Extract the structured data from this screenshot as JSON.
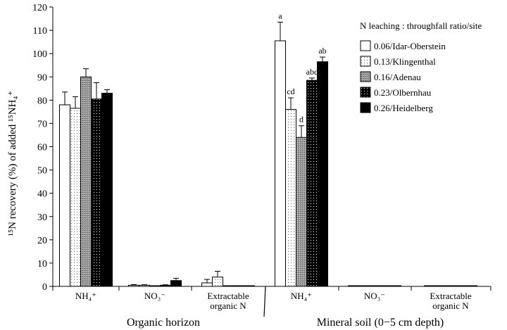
{
  "chart_data": {
    "type": "bar",
    "ylabel": "¹⁵N recovery (%) of added ¹⁵NH₄⁺",
    "ylim": [
      0,
      120
    ],
    "yticks": [
      0,
      10,
      20,
      30,
      40,
      50,
      60,
      70,
      80,
      90,
      100,
      110,
      120
    ],
    "legend_title": "N leaching : throughfall ratio/site",
    "legend_position": "top-right",
    "groups": [
      {
        "label": "Organic horizon",
        "categories": [
          "NH₄⁺",
          "NO₃⁻",
          "Extractable organic N"
        ]
      },
      {
        "label": "Mineral soil (0−5 cm depth)",
        "categories": [
          "NH₄⁺",
          "NO₃⁻",
          "Extractable organic N"
        ]
      }
    ],
    "series": [
      {
        "name": "0.06/Idar-Oberstein",
        "color": "#ffffff",
        "pattern": "none",
        "values": [
          78,
          0.5,
          1.5,
          105.5,
          0.3,
          0.3
        ],
        "errors": [
          5.5,
          0.3,
          1.5,
          8,
          0,
          0
        ],
        "labels": [
          "",
          "",
          "",
          "a",
          "",
          ""
        ]
      },
      {
        "name": "0.13/Klingenthal",
        "color": "#ffffff",
        "pattern": "sparse-dots",
        "values": [
          76.5,
          0.5,
          4,
          76,
          0.3,
          0.3
        ],
        "errors": [
          5,
          0.2,
          2.5,
          5,
          0,
          0
        ],
        "labels": [
          "",
          "",
          "",
          "cd",
          "",
          ""
        ]
      },
      {
        "name": "0.16/Adenau",
        "color": "#8c8c8c",
        "pattern": "gray",
        "values": [
          90,
          0.3,
          0.3,
          64,
          0.3,
          0.3
        ],
        "errors": [
          3.5,
          0,
          0,
          5,
          0,
          0
        ],
        "labels": [
          "",
          "",
          "",
          "d",
          "",
          ""
        ]
      },
      {
        "name": "0.23/Olbernhau",
        "color": "#000000",
        "pattern": "white-dots",
        "values": [
          80.5,
          0.5,
          0.3,
          88.5,
          0.3,
          0.3
        ],
        "errors": [
          7,
          0.2,
          0,
          1,
          0,
          0
        ],
        "labels": [
          "",
          "",
          "",
          "abc",
          "",
          ""
        ]
      },
      {
        "name": "0.26/Heidelberg",
        "color": "#000000",
        "pattern": "solid",
        "values": [
          83,
          2.5,
          0.3,
          96.5,
          0.3,
          0.3
        ],
        "errors": [
          1.5,
          1,
          0,
          2,
          0,
          0
        ],
        "labels": [
          "",
          "",
          "",
          "ab",
          "",
          ""
        ]
      }
    ]
  }
}
